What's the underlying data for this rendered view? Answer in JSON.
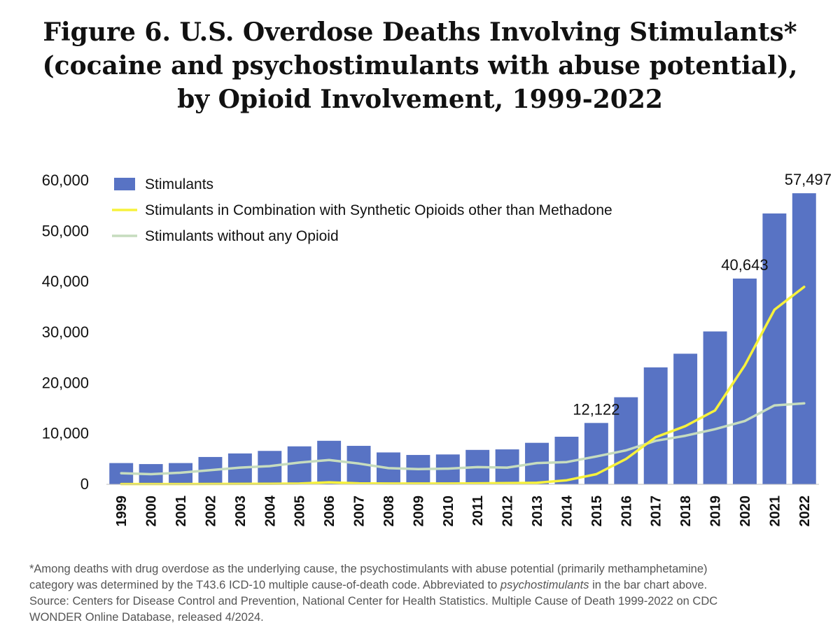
{
  "title_lines": [
    "Figure 6. U.S. Overdose Deaths Involving Stimulants*",
    "(cocaine and psychostimulants with abuse potential),",
    "by Opioid Involvement, 1999-2022"
  ],
  "footnote": {
    "line1": "*Among deaths with drug overdose as the underlying cause, the psychostimulants with abuse potential (primarily methamphetamine)",
    "line2_before": "category was determined by the T43.6 ICD-10 multiple cause-of-death code. Abbreviated to ",
    "line2_italic": "psychostimulants",
    "line2_after": " in the bar chart above.",
    "line3": "Source: Centers for Disease Control and Prevention, National Center for Health Statistics. Multiple Cause of Death 1999-2022 on CDC",
    "line4": "WONDER Online Database, released 4/2024."
  },
  "chart_data": {
    "type": "bar",
    "categories": [
      "1999",
      "2000",
      "2001",
      "2002",
      "2003",
      "2004",
      "2005",
      "2006",
      "2007",
      "2008",
      "2009",
      "2010",
      "2011",
      "2012",
      "2013",
      "2014",
      "2015",
      "2016",
      "2017",
      "2018",
      "2019",
      "2020",
      "2021",
      "2022"
    ],
    "ylim": [
      0,
      60000
    ],
    "yticks": [
      0,
      10000,
      20000,
      30000,
      40000,
      50000,
      60000
    ],
    "ytick_labels": [
      "0",
      "10,000",
      "20,000",
      "30,000",
      "40,000",
      "50,000",
      "60,000"
    ],
    "grid": false,
    "legend_position": "top-left",
    "series": [
      {
        "name": "Stimulants",
        "type": "bar",
        "color": "#5873c4",
        "values": [
          4200,
          4000,
          4200,
          5400,
          6100,
          6600,
          7500,
          8600,
          7600,
          6300,
          5800,
          5900,
          6800,
          6900,
          8200,
          9400,
          12122,
          17200,
          23100,
          25800,
          30200,
          40643,
          53500,
          57497
        ]
      },
      {
        "name": "Stimulants in Combination with Synthetic Opioids other than Methadone",
        "type": "line",
        "color": "#f7f23c",
        "values": [
          50,
          50,
          60,
          70,
          80,
          100,
          150,
          400,
          200,
          150,
          150,
          150,
          200,
          250,
          300,
          800,
          2000,
          5000,
          9300,
          11500,
          14600,
          23500,
          34500,
          39000
        ]
      },
      {
        "name": "Stimulants without any Opioid",
        "type": "line",
        "color": "#c6dcbe",
        "values": [
          2200,
          2000,
          2300,
          2800,
          3300,
          3600,
          4300,
          4800,
          4100,
          3200,
          3000,
          3100,
          3400,
          3300,
          4200,
          4400,
          5500,
          6700,
          8600,
          9600,
          10900,
          12500,
          15600,
          16000
        ]
      }
    ],
    "data_labels": [
      {
        "category": "2015",
        "text": "12,122"
      },
      {
        "category": "2020",
        "text": "40,643"
      },
      {
        "category": "2022",
        "text": "57,497"
      }
    ]
  }
}
